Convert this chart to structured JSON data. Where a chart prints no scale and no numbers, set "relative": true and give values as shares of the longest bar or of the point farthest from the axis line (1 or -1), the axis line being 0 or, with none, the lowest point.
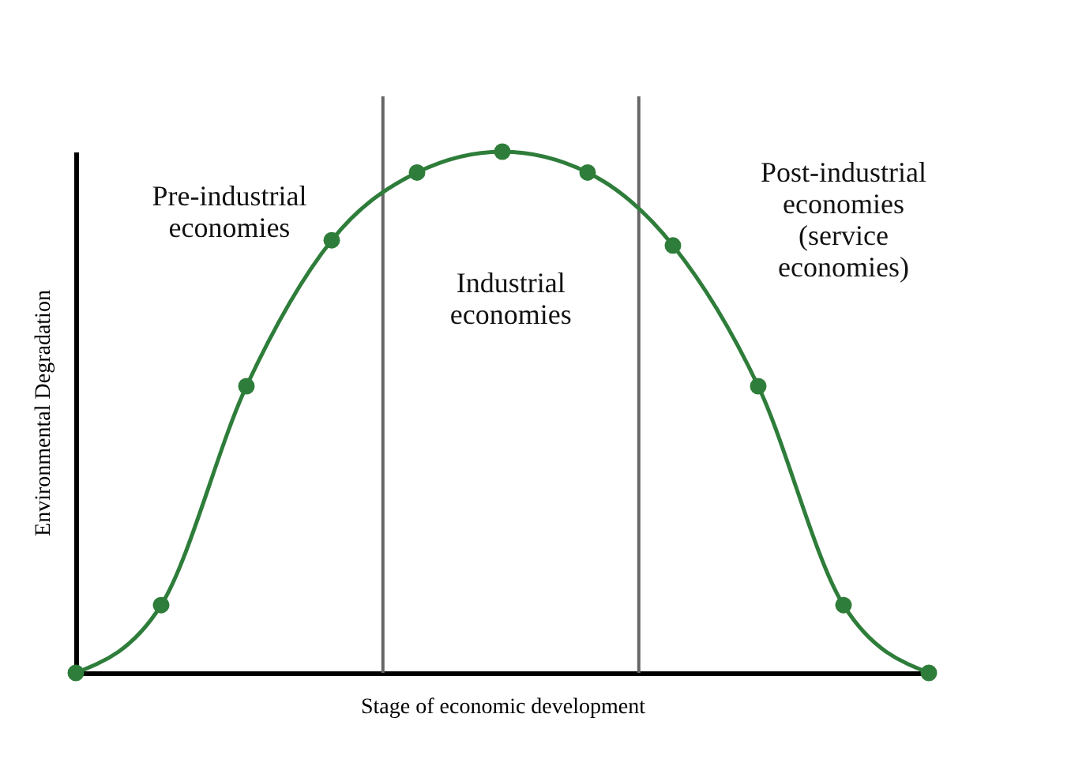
{
  "chart_data": {
    "type": "line",
    "relative": true,
    "xlabel": "Stage of economic development",
    "ylabel": "Environmental Degradation",
    "categories": [
      null,
      null,
      null,
      null,
      null,
      null,
      null,
      null,
      null,
      null,
      null
    ],
    "series": [
      {
        "color": "#2e7d3a",
        "values": [
          0,
          0.13,
          0.55,
          0.83,
          0.96,
          1,
          0.96,
          0.82,
          0.55,
          0.13,
          0
        ]
      }
    ],
    "marker": "circle",
    "line_style": "solid",
    "grid": false,
    "tick_labels": false,
    "annotations": [
      "Pre-industrial economies",
      "Industrial economies",
      "Post-industrial economies (service economies)"
    ]
  }
}
